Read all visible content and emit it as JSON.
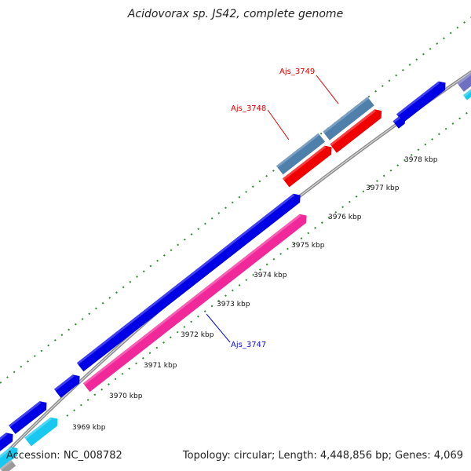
{
  "title": "Acidovorax sp. JS42, complete genome",
  "footer": {
    "accession": "Accession: NC_008782",
    "summary": "Topology: circular; Length: 4,448,856 bp; Genes: 4,069"
  },
  "ticks": [
    "3969 kbp",
    "3970 kbp",
    "3971 kbp",
    "3972 kbp",
    "3973 kbp",
    "3974 kbp",
    "3975 kbp",
    "3976 kbp",
    "3977 kbp",
    "3978 kbp"
  ],
  "labels": {
    "ajs_3747": "Ajs_3747",
    "ajs_3748": "Ajs_3748",
    "ajs_3749": "Ajs_3749"
  },
  "colors": {
    "backbone": "#8a8a8a",
    "gene_blue": "#0000e6",
    "gene_magenta": "#f0289a",
    "gene_red": "#f00000",
    "gene_steel": "#4f7fab",
    "gene_cyan": "#18c8f0",
    "grid_green": "#2e8b2e",
    "label_red": "#e00000",
    "label_blue": "#1010d0"
  }
}
